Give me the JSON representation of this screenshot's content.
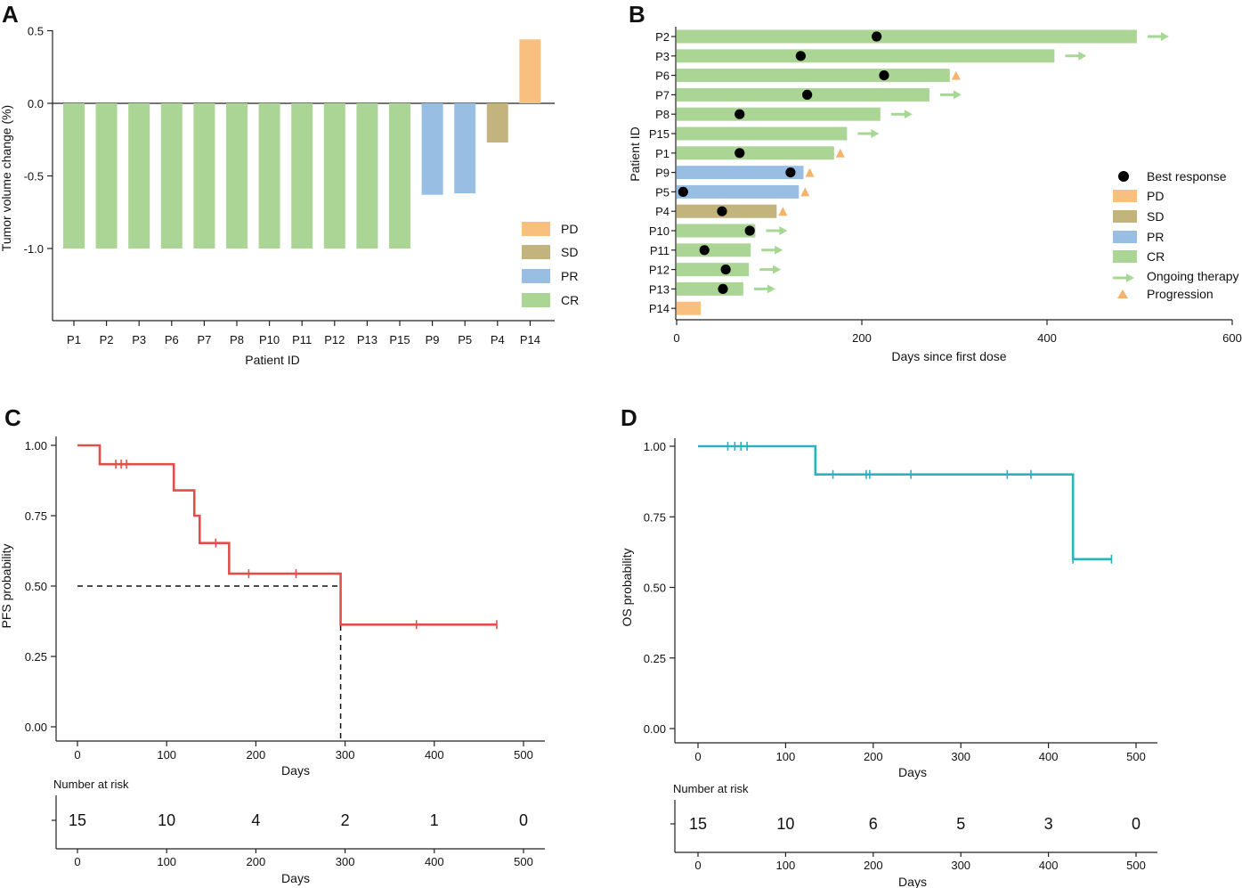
{
  "colors": {
    "PD": "#F9BF7E",
    "SD": "#C3B37C",
    "PR": "#98BEE4",
    "CR": "#ABD594",
    "arrow": "#A7D794",
    "triangle": "#F6B36C",
    "dot": "#000000",
    "pfs_line": "#E0504B",
    "os_line": "#2BB3BC"
  },
  "panel_letters": [
    "A",
    "B",
    "C",
    "D"
  ],
  "chart_data": [
    {
      "panel": "A",
      "type": "bar",
      "title": "",
      "xlabel": "Patient ID",
      "ylabel": "Tumor volume change (%)",
      "ylim": [
        -1.5,
        0.5
      ],
      "yticks": [
        0.5,
        0.0,
        -0.5,
        -1.0
      ],
      "ytick_labels": [
        "0.5",
        "0.0",
        "-0.5",
        "-1.0"
      ],
      "categories": [
        "P1",
        "P2",
        "P3",
        "P6",
        "P7",
        "P8",
        "P10",
        "P11",
        "P12",
        "P13",
        "P15",
        "P9",
        "P5",
        "P4",
        "P14"
      ],
      "values": [
        -1.0,
        -1.0,
        -1.0,
        -1.0,
        -1.0,
        -1.0,
        -1.0,
        -1.0,
        -1.0,
        -1.0,
        -1.0,
        -0.63,
        -0.62,
        -0.27,
        0.44
      ],
      "response": [
        "CR",
        "CR",
        "CR",
        "CR",
        "CR",
        "CR",
        "CR",
        "CR",
        "CR",
        "CR",
        "CR",
        "PR",
        "PR",
        "SD",
        "PD"
      ],
      "legend": [
        "PD",
        "SD",
        "PR",
        "CR"
      ],
      "legend_position": "bottom-right"
    },
    {
      "panel": "B",
      "type": "swimmer",
      "xlabel": "Days since first dose",
      "ylabel": "Patient ID",
      "xlim": [
        0,
        600
      ],
      "xticks": [
        0,
        200,
        400,
        600
      ],
      "xtick_labels": [
        "0",
        "200",
        "400",
        "600"
      ],
      "patients": [
        {
          "id": "P2",
          "days": 497,
          "response": "CR",
          "best": 216,
          "end": "arrow"
        },
        {
          "id": "P3",
          "days": 408,
          "response": "CR",
          "best": 134,
          "end": "arrow"
        },
        {
          "id": "P6",
          "days": 295,
          "response": "CR",
          "best": 224,
          "end": "triangle"
        },
        {
          "id": "P7",
          "days": 273,
          "response": "CR",
          "best": 141,
          "end": "arrow"
        },
        {
          "id": "P8",
          "days": 220,
          "response": "CR",
          "best": 68,
          "end": "arrow"
        },
        {
          "id": "P15",
          "days": 184,
          "response": "CR",
          "best": null,
          "end": "arrow"
        },
        {
          "id": "P1",
          "days": 170,
          "response": "CR",
          "best": 68,
          "end": "triangle"
        },
        {
          "id": "P9",
          "days": 137,
          "response": "PR",
          "best": 123,
          "end": "triangle"
        },
        {
          "id": "P5",
          "days": 132,
          "response": "PR",
          "best": 7,
          "end": "triangle"
        },
        {
          "id": "P4",
          "days": 108,
          "response": "SD",
          "best": 49,
          "end": "triangle"
        },
        {
          "id": "P10",
          "days": 85,
          "response": "CR",
          "best": 79,
          "end": "arrow"
        },
        {
          "id": "P11",
          "days": 80,
          "response": "CR",
          "best": 30,
          "end": "arrow"
        },
        {
          "id": "P12",
          "days": 78,
          "response": "CR",
          "best": 53,
          "end": "arrow"
        },
        {
          "id": "P13",
          "days": 72,
          "response": "CR",
          "best": 50,
          "end": "arrow"
        },
        {
          "id": "P14",
          "days": 26,
          "response": "PD",
          "best": null,
          "end": "none"
        }
      ],
      "legend": [
        "Best response",
        "PD",
        "SD",
        "PR",
        "CR",
        "Ongoing therapy",
        "Progression"
      ],
      "legend_position": "right"
    },
    {
      "panel": "C",
      "type": "line",
      "subtype": "kaplan-meier",
      "xlabel": "Days",
      "ylabel": "PFS probability",
      "xlim": [
        0,
        500
      ],
      "ylim": [
        0,
        1
      ],
      "xticks": [
        0,
        100,
        200,
        300,
        400,
        500
      ],
      "yticks": [
        0.0,
        0.25,
        0.5,
        0.75,
        1.0
      ],
      "ytick_labels": [
        "0.00",
        "0.25",
        "0.50",
        "0.75",
        "1.00"
      ],
      "steps": [
        {
          "x": 0,
          "y": 1.0
        },
        {
          "x": 25,
          "y": 0.933
        },
        {
          "x": 108,
          "y": 0.84
        },
        {
          "x": 131,
          "y": 0.75
        },
        {
          "x": 137,
          "y": 0.653
        },
        {
          "x": 170,
          "y": 0.544
        },
        {
          "x": 295,
          "y": 0.363
        }
      ],
      "x_end": 470,
      "censors": [
        {
          "x": 43,
          "y": 0.933
        },
        {
          "x": 49,
          "y": 0.933
        },
        {
          "x": 55,
          "y": 0.933
        },
        {
          "x": 155,
          "y": 0.653
        },
        {
          "x": 192,
          "y": 0.544
        },
        {
          "x": 245,
          "y": 0.544
        },
        {
          "x": 380,
          "y": 0.363
        },
        {
          "x": 470,
          "y": 0.363
        }
      ],
      "median_line": {
        "y": 0.5,
        "x": 295
      },
      "risk_table_title": "Number at risk",
      "risk_x": [
        0,
        100,
        200,
        300,
        400,
        500
      ],
      "risk_values": [
        "15",
        "10",
        "4",
        "2",
        "1",
        "0"
      ]
    },
    {
      "panel": "D",
      "type": "line",
      "subtype": "kaplan-meier",
      "xlabel": "Days",
      "ylabel": "OS probability",
      "xlim": [
        0,
        500
      ],
      "ylim": [
        0,
        1
      ],
      "xticks": [
        0,
        100,
        200,
        300,
        400,
        500
      ],
      "yticks": [
        0.0,
        0.25,
        0.5,
        0.75,
        1.0
      ],
      "ytick_labels": [
        "0.00",
        "0.25",
        "0.50",
        "0.75",
        "1.00"
      ],
      "steps": [
        {
          "x": 0,
          "y": 1.0
        },
        {
          "x": 134,
          "y": 0.9
        },
        {
          "x": 428,
          "y": 0.6
        }
      ],
      "x_end": 472,
      "censors": [
        {
          "x": 34,
          "y": 1.0
        },
        {
          "x": 42,
          "y": 1.0
        },
        {
          "x": 49,
          "y": 1.0
        },
        {
          "x": 56,
          "y": 1.0
        },
        {
          "x": 154,
          "y": 0.9
        },
        {
          "x": 192,
          "y": 0.9
        },
        {
          "x": 196,
          "y": 0.9
        },
        {
          "x": 243,
          "y": 0.9
        },
        {
          "x": 353,
          "y": 0.9
        },
        {
          "x": 380,
          "y": 0.9
        },
        {
          "x": 428,
          "y": 0.6
        },
        {
          "x": 472,
          "y": 0.6
        }
      ],
      "risk_table_title": "Number at risk",
      "risk_x": [
        0,
        100,
        200,
        300,
        400,
        500
      ],
      "risk_values": [
        "15",
        "10",
        "6",
        "5",
        "3",
        "0"
      ]
    }
  ]
}
